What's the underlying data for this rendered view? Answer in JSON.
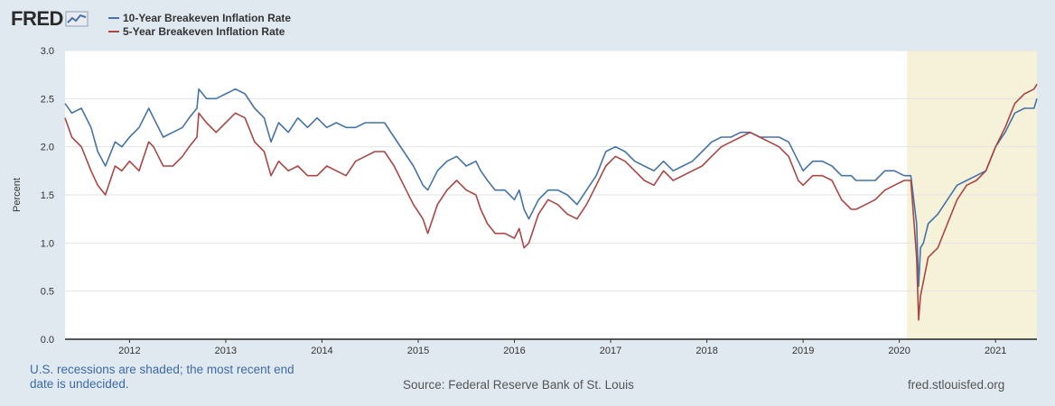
{
  "header": {
    "logo_text": "FRED"
  },
  "legend": [
    {
      "label": "10-Year Breakeven Inflation Rate",
      "color": "#4572a7"
    },
    {
      "label": "5-Year Breakeven Inflation Rate",
      "color": "#aa4643"
    }
  ],
  "footer": {
    "recession_note": "U.S. recessions are shaded; the most recent end date is undecided.",
    "source": "Source: Federal Reserve Bank of St. Louis",
    "site": "fred.stlouisfed.org"
  },
  "chart_data": {
    "type": "line",
    "ylabel": "Percent",
    "ylim": [
      0.0,
      3.0
    ],
    "yticks": [
      "0.0",
      "0.5",
      "1.0",
      "1.5",
      "2.0",
      "2.5",
      "3.0"
    ],
    "xlim": [
      2011.33,
      2021.43
    ],
    "xticks": [
      "2012",
      "2013",
      "2014",
      "2015",
      "2016",
      "2017",
      "2018",
      "2019",
      "2020",
      "2021"
    ],
    "recession_shading": {
      "start": 2020.08,
      "end": 2021.43,
      "color": "#f5f2d9"
    },
    "series": [
      {
        "name": "10-Year Breakeven Inflation Rate",
        "color": "#4572a7",
        "x": [
          2011.33,
          2011.4,
          2011.5,
          2011.6,
          2011.67,
          2011.75,
          2011.85,
          2011.92,
          2012.0,
          2012.1,
          2012.2,
          2012.25,
          2012.35,
          2012.45,
          2012.55,
          2012.62,
          2012.7,
          2012.72,
          2012.8,
          2012.9,
          2013.0,
          2013.1,
          2013.2,
          2013.3,
          2013.4,
          2013.47,
          2013.55,
          2013.65,
          2013.75,
          2013.85,
          2013.95,
          2014.05,
          2014.15,
          2014.25,
          2014.35,
          2014.45,
          2014.55,
          2014.65,
          2014.75,
          2014.85,
          2014.95,
          2015.05,
          2015.1,
          2015.2,
          2015.3,
          2015.4,
          2015.5,
          2015.6,
          2015.65,
          2015.72,
          2015.8,
          2015.9,
          2016.0,
          2016.05,
          2016.1,
          2016.15,
          2016.25,
          2016.35,
          2016.45,
          2016.55,
          2016.65,
          2016.75,
          2016.85,
          2016.95,
          2017.05,
          2017.15,
          2017.25,
          2017.35,
          2017.45,
          2017.55,
          2017.65,
          2017.75,
          2017.85,
          2017.95,
          2018.05,
          2018.15,
          2018.25,
          2018.35,
          2018.45,
          2018.55,
          2018.65,
          2018.75,
          2018.85,
          2018.95,
          2019.0,
          2019.1,
          2019.2,
          2019.3,
          2019.4,
          2019.5,
          2019.55,
          2019.65,
          2019.75,
          2019.85,
          2019.95,
          2020.05,
          2020.12,
          2020.18,
          2020.2,
          2020.22,
          2020.25,
          2020.3,
          2020.4,
          2020.5,
          2020.6,
          2020.7,
          2020.8,
          2020.9,
          2021.0,
          2021.1,
          2021.2,
          2021.3,
          2021.4,
          2021.43
        ],
        "values": [
          2.45,
          2.35,
          2.4,
          2.2,
          1.95,
          1.8,
          2.05,
          2.0,
          2.1,
          2.2,
          2.4,
          2.3,
          2.1,
          2.15,
          2.2,
          2.3,
          2.4,
          2.6,
          2.5,
          2.5,
          2.55,
          2.6,
          2.55,
          2.4,
          2.3,
          2.05,
          2.25,
          2.15,
          2.3,
          2.2,
          2.3,
          2.2,
          2.25,
          2.2,
          2.2,
          2.25,
          2.25,
          2.25,
          2.1,
          1.95,
          1.8,
          1.6,
          1.55,
          1.75,
          1.85,
          1.9,
          1.8,
          1.85,
          1.75,
          1.65,
          1.55,
          1.55,
          1.45,
          1.55,
          1.35,
          1.25,
          1.45,
          1.55,
          1.55,
          1.5,
          1.4,
          1.55,
          1.7,
          1.95,
          2.0,
          1.95,
          1.85,
          1.8,
          1.75,
          1.85,
          1.75,
          1.8,
          1.85,
          1.95,
          2.05,
          2.1,
          2.1,
          2.15,
          2.15,
          2.1,
          2.1,
          2.1,
          2.05,
          1.85,
          1.75,
          1.85,
          1.85,
          1.8,
          1.7,
          1.7,
          1.65,
          1.65,
          1.65,
          1.75,
          1.75,
          1.7,
          1.7,
          1.2,
          0.55,
          0.95,
          1.0,
          1.2,
          1.3,
          1.45,
          1.6,
          1.65,
          1.7,
          1.75,
          2.0,
          2.15,
          2.35,
          2.4,
          2.4,
          2.5
        ]
      },
      {
        "name": "5-Year Breakeven Inflation Rate",
        "color": "#aa4643",
        "x": [
          2011.33,
          2011.4,
          2011.5,
          2011.6,
          2011.67,
          2011.75,
          2011.85,
          2011.92,
          2012.0,
          2012.1,
          2012.2,
          2012.25,
          2012.35,
          2012.45,
          2012.55,
          2012.62,
          2012.7,
          2012.72,
          2012.8,
          2012.9,
          2013.0,
          2013.1,
          2013.2,
          2013.3,
          2013.4,
          2013.47,
          2013.55,
          2013.65,
          2013.75,
          2013.85,
          2013.95,
          2014.05,
          2014.15,
          2014.25,
          2014.35,
          2014.45,
          2014.55,
          2014.65,
          2014.75,
          2014.85,
          2014.95,
          2015.05,
          2015.1,
          2015.2,
          2015.3,
          2015.4,
          2015.5,
          2015.6,
          2015.65,
          2015.72,
          2015.8,
          2015.9,
          2016.0,
          2016.05,
          2016.1,
          2016.15,
          2016.25,
          2016.35,
          2016.45,
          2016.55,
          2016.65,
          2016.75,
          2016.85,
          2016.95,
          2017.05,
          2017.15,
          2017.25,
          2017.35,
          2017.45,
          2017.55,
          2017.65,
          2017.75,
          2017.85,
          2017.95,
          2018.05,
          2018.15,
          2018.25,
          2018.35,
          2018.45,
          2018.55,
          2018.65,
          2018.75,
          2018.85,
          2018.95,
          2019.0,
          2019.1,
          2019.2,
          2019.3,
          2019.4,
          2019.5,
          2019.55,
          2019.65,
          2019.75,
          2019.85,
          2019.95,
          2020.05,
          2020.12,
          2020.18,
          2020.2,
          2020.22,
          2020.25,
          2020.3,
          2020.4,
          2020.5,
          2020.6,
          2020.7,
          2020.8,
          2020.9,
          2021.0,
          2021.1,
          2021.2,
          2021.3,
          2021.4,
          2021.43
        ],
        "values": [
          2.3,
          2.1,
          2.0,
          1.75,
          1.6,
          1.5,
          1.8,
          1.75,
          1.85,
          1.75,
          2.05,
          2.0,
          1.8,
          1.8,
          1.9,
          2.0,
          2.1,
          2.35,
          2.25,
          2.15,
          2.25,
          2.35,
          2.3,
          2.05,
          1.95,
          1.7,
          1.85,
          1.75,
          1.8,
          1.7,
          1.7,
          1.8,
          1.75,
          1.7,
          1.85,
          1.9,
          1.95,
          1.95,
          1.8,
          1.6,
          1.4,
          1.25,
          1.1,
          1.4,
          1.55,
          1.65,
          1.55,
          1.5,
          1.35,
          1.2,
          1.1,
          1.1,
          1.05,
          1.15,
          0.95,
          1.0,
          1.3,
          1.45,
          1.4,
          1.3,
          1.25,
          1.4,
          1.6,
          1.8,
          1.9,
          1.85,
          1.75,
          1.65,
          1.6,
          1.75,
          1.65,
          1.7,
          1.75,
          1.8,
          1.9,
          2.0,
          2.05,
          2.1,
          2.15,
          2.1,
          2.05,
          2.0,
          1.9,
          1.65,
          1.6,
          1.7,
          1.7,
          1.65,
          1.45,
          1.35,
          1.35,
          1.4,
          1.45,
          1.55,
          1.6,
          1.65,
          1.65,
          0.85,
          0.2,
          0.45,
          0.6,
          0.85,
          0.95,
          1.2,
          1.45,
          1.6,
          1.65,
          1.75,
          2.0,
          2.2,
          2.45,
          2.55,
          2.6,
          2.65
        ]
      }
    ]
  }
}
